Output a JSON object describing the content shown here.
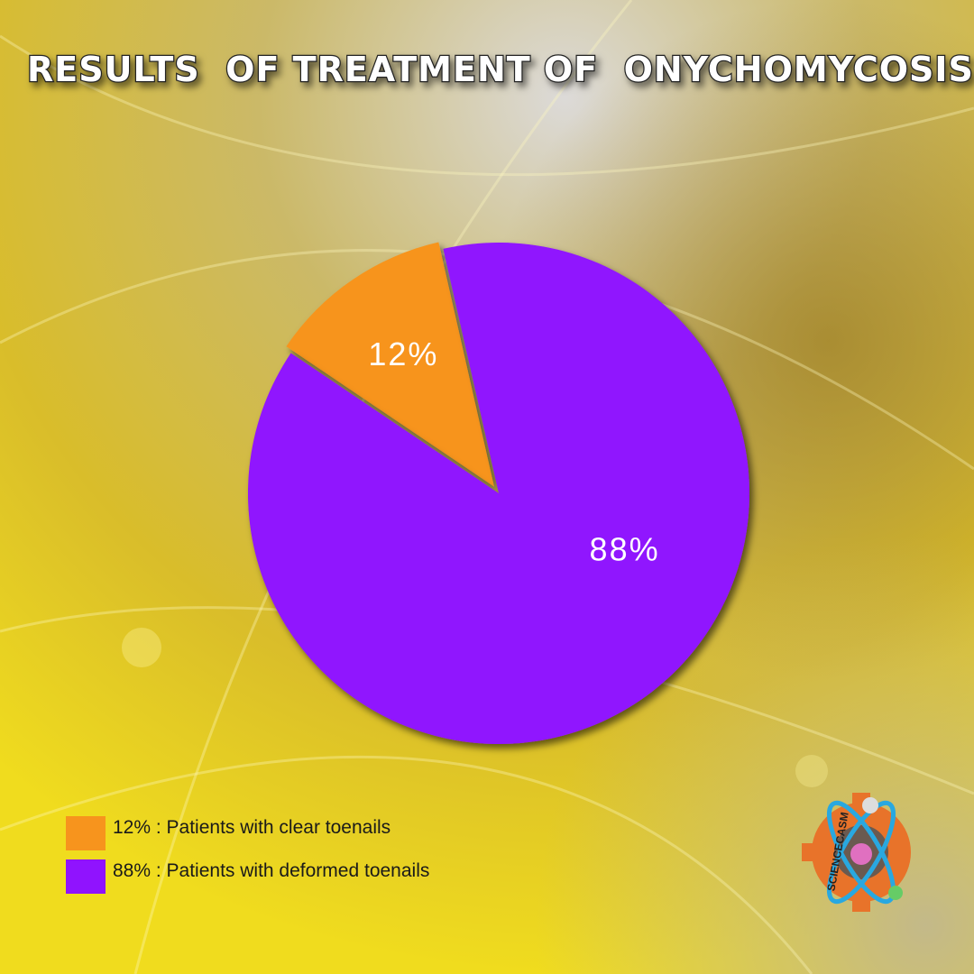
{
  "chart_data": {
    "type": "pie",
    "title": "RESULTS  OF TREATMENT OF  ONYCHOMYCOSIS",
    "categories": [
      "12% : Patients with clear toenails",
      "88% : Patients with deformed toenails"
    ],
    "values": [
      12,
      88
    ],
    "value_labels": [
      "12%",
      "88%"
    ],
    "colors": [
      "#f7941d",
      "#9013fe"
    ],
    "exploded": [
      true,
      false
    ],
    "legend": "bottom-left"
  },
  "logo": {
    "text": "SCIENCECASM"
  }
}
